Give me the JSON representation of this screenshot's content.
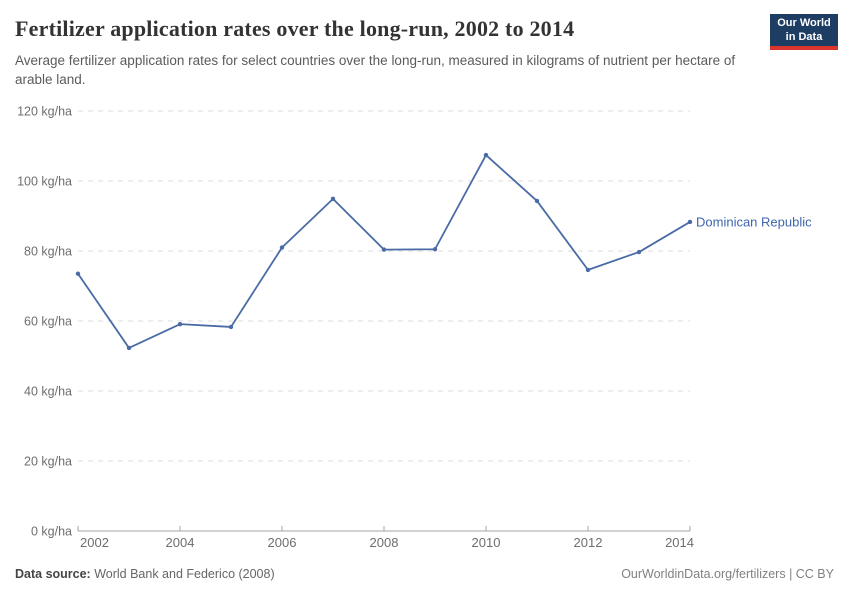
{
  "header": {
    "title": "Fertilizer application rates over the long-run, 2002 to 2014",
    "subtitle": "Average fertilizer application rates for select countries over the long-run, measured in kilograms of nutrient per hectare of arable land.",
    "logo": {
      "line1": "Our World",
      "line2": "in Data",
      "bg_color": "#1d3d63",
      "stripe_color": "#dc352c"
    }
  },
  "footer": {
    "source_label": "Data source:",
    "source_text": " World Bank and Federico (2008)",
    "link_text": "OurWorldinData.org/fertilizers | CC BY"
  },
  "chart_data": {
    "type": "line",
    "title": "Fertilizer application rates over the long-run, 2002 to 2014",
    "xlabel": "",
    "ylabel": "kg/ha",
    "x": [
      2002,
      2003,
      2004,
      2005,
      2006,
      2007,
      2008,
      2009,
      2010,
      2011,
      2012,
      2013,
      2014
    ],
    "series": [
      {
        "name": "Dominican Republic",
        "values": [
          73.5,
          52.3,
          59.1,
          58.3,
          81.0,
          94.9,
          80.4,
          80.5,
          107.4,
          94.3,
          74.6,
          79.7,
          88.3
        ],
        "color": "#4a6ba5",
        "label_color": "#3e66ad"
      }
    ],
    "ylim": [
      0,
      120
    ],
    "yticks": [
      0,
      20,
      40,
      60,
      80,
      100,
      120
    ],
    "ytick_suffix": " kg/ha",
    "xticks": [
      2002,
      2004,
      2006,
      2008,
      2010,
      2012,
      2014
    ],
    "grid": "horizontal-dashed",
    "legend_position": "end-of-line-label",
    "markers": true
  }
}
